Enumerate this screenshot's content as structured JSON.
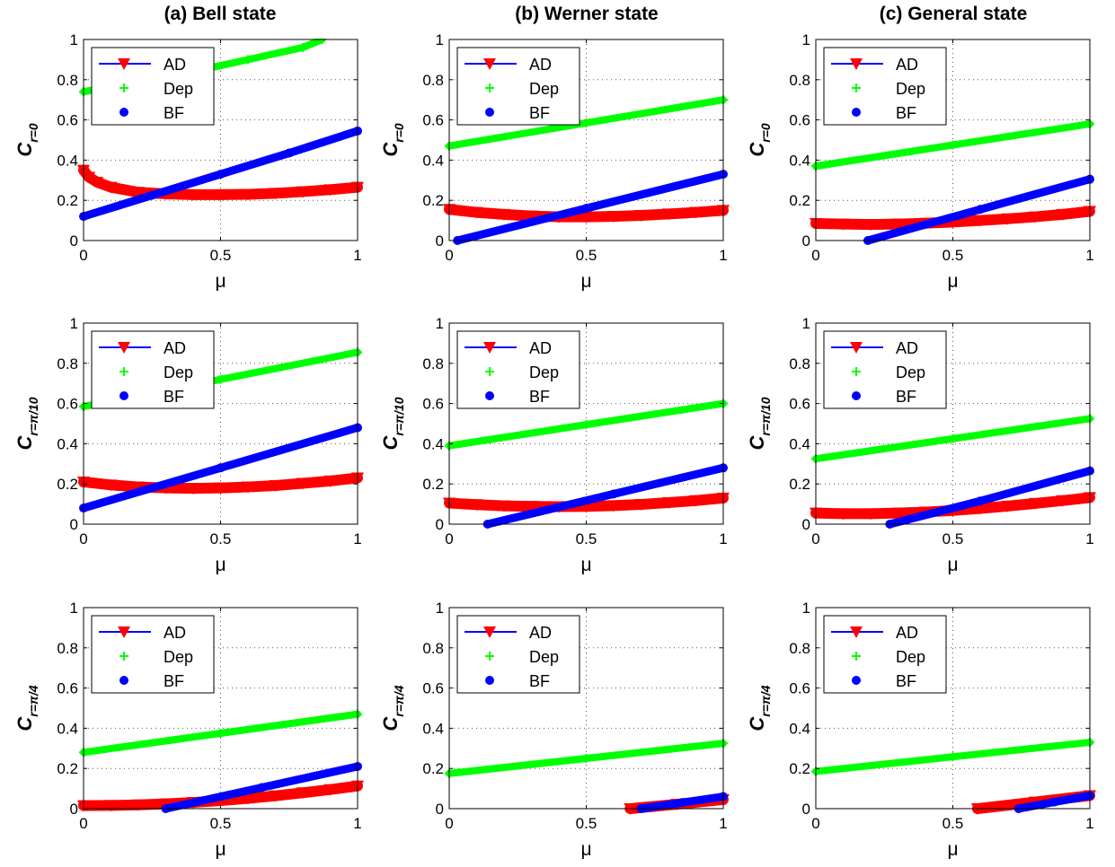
{
  "column_titles": [
    "(a) Bell state",
    "(b) Werner state",
    "(c) General state"
  ],
  "chart_data": [
    {
      "type": "line",
      "panel": "bell-r0",
      "xlabel": "μ",
      "ylabel_main": "C",
      "ylabel_sub": "r=0",
      "xlim": [
        0,
        1
      ],
      "ylim": [
        0,
        1
      ],
      "xticks": [
        "0",
        "0.5",
        "1"
      ],
      "yticks": [
        "0",
        "0.2",
        "0.4",
        "0.6",
        "0.8",
        "1"
      ],
      "grid": true,
      "legend_position": "top-left",
      "series": [
        {
          "name": "AD",
          "color": "#ff0000",
          "marker": "triangle-down",
          "x": [
            0,
            0.02,
            0.05,
            0.1,
            0.2,
            0.3,
            0.4,
            0.5,
            0.6,
            0.7,
            0.8,
            0.9,
            1.0
          ],
          "y": [
            0.35,
            0.315,
            0.29,
            0.265,
            0.24,
            0.232,
            0.228,
            0.228,
            0.23,
            0.235,
            0.243,
            0.253,
            0.265
          ]
        },
        {
          "name": "Dep",
          "color": "#00ff00",
          "marker": "plus",
          "x": [
            0,
            0.2,
            0.4,
            0.6,
            0.8,
            0.87
          ],
          "y": [
            0.74,
            0.79,
            0.84,
            0.9,
            0.96,
            1.0
          ]
        },
        {
          "name": "BF",
          "color": "#0000ff",
          "marker": "star",
          "x": [
            0,
            0.25,
            0.5,
            0.75,
            1.0
          ],
          "y": [
            0.12,
            0.225,
            0.33,
            0.435,
            0.545
          ]
        }
      ]
    },
    {
      "type": "line",
      "panel": "werner-r0",
      "xlabel": "μ",
      "ylabel_main": "C",
      "ylabel_sub": "r=0",
      "xlim": [
        0,
        1
      ],
      "ylim": [
        0,
        1
      ],
      "xticks": [
        "0",
        "0.5",
        "1"
      ],
      "yticks": [
        "0",
        "0.2",
        "0.4",
        "0.6",
        "0.8",
        "1"
      ],
      "grid": true,
      "legend_position": "top-left",
      "series": [
        {
          "name": "AD",
          "color": "#ff0000",
          "marker": "triangle-down",
          "x": [
            0,
            0.1,
            0.2,
            0.3,
            0.4,
            0.5,
            0.6,
            0.7,
            0.8,
            0.9,
            1.0
          ],
          "y": [
            0.155,
            0.14,
            0.13,
            0.122,
            0.118,
            0.118,
            0.12,
            0.125,
            0.132,
            0.14,
            0.15
          ]
        },
        {
          "name": "Dep",
          "color": "#00ff00",
          "marker": "plus",
          "x": [
            0,
            0.5,
            1.0
          ],
          "y": [
            0.47,
            0.585,
            0.7
          ]
        },
        {
          "name": "BF",
          "color": "#0000ff",
          "marker": "star",
          "x": [
            0.03,
            0.5,
            1.0
          ],
          "y": [
            0.0,
            0.16,
            0.33
          ]
        }
      ]
    },
    {
      "type": "line",
      "panel": "general-r0",
      "xlabel": "μ",
      "ylabel_main": "C",
      "ylabel_sub": "r=0",
      "xlim": [
        0,
        1
      ],
      "ylim": [
        0,
        1
      ],
      "xticks": [
        "0",
        "0.5",
        "1"
      ],
      "yticks": [
        "0",
        "0.2",
        "0.4",
        "0.6",
        "0.8",
        "1"
      ],
      "grid": true,
      "legend_position": "top-left",
      "series": [
        {
          "name": "AD",
          "color": "#ff0000",
          "marker": "triangle-down",
          "x": [
            0,
            0.1,
            0.2,
            0.3,
            0.4,
            0.5,
            0.6,
            0.7,
            0.8,
            0.9,
            1.0
          ],
          "y": [
            0.085,
            0.082,
            0.08,
            0.082,
            0.086,
            0.092,
            0.1,
            0.108,
            0.118,
            0.13,
            0.145
          ]
        },
        {
          "name": "Dep",
          "color": "#00ff00",
          "marker": "plus",
          "x": [
            0,
            0.5,
            1.0
          ],
          "y": [
            0.37,
            0.475,
            0.58
          ]
        },
        {
          "name": "BF",
          "color": "#0000ff",
          "marker": "star",
          "x": [
            0.19,
            0.6,
            1.0
          ],
          "y": [
            0.0,
            0.155,
            0.305
          ]
        }
      ]
    },
    {
      "type": "line",
      "panel": "bell-pi10",
      "xlabel": "μ",
      "ylabel_main": "C",
      "ylabel_sub": "r=π/10",
      "xlim": [
        0,
        1
      ],
      "ylim": [
        0,
        1
      ],
      "xticks": [
        "0",
        "0.5",
        "1"
      ],
      "yticks": [
        "0",
        "0.2",
        "0.4",
        "0.6",
        "0.8",
        "1"
      ],
      "grid": true,
      "legend_position": "top-left",
      "series": [
        {
          "name": "AD",
          "color": "#ff0000",
          "marker": "triangle-down",
          "x": [
            0,
            0.1,
            0.2,
            0.3,
            0.4,
            0.5,
            0.6,
            0.7,
            0.8,
            0.9,
            1.0
          ],
          "y": [
            0.21,
            0.195,
            0.185,
            0.18,
            0.178,
            0.18,
            0.185,
            0.192,
            0.203,
            0.215,
            0.23
          ]
        },
        {
          "name": "Dep",
          "color": "#00ff00",
          "marker": "plus",
          "x": [
            0,
            0.5,
            1.0
          ],
          "y": [
            0.585,
            0.72,
            0.855
          ]
        },
        {
          "name": "BF",
          "color": "#0000ff",
          "marker": "star",
          "x": [
            0,
            0.5,
            1.0
          ],
          "y": [
            0.08,
            0.28,
            0.48
          ]
        }
      ]
    },
    {
      "type": "line",
      "panel": "werner-pi10",
      "xlabel": "μ",
      "ylabel_main": "C",
      "ylabel_sub": "r=π/10",
      "xlim": [
        0,
        1
      ],
      "ylim": [
        0,
        1
      ],
      "xticks": [
        "0",
        "0.5",
        "1"
      ],
      "yticks": [
        "0",
        "0.2",
        "0.4",
        "0.6",
        "0.8",
        "1"
      ],
      "grid": true,
      "legend_position": "top-left",
      "series": [
        {
          "name": "AD",
          "color": "#ff0000",
          "marker": "triangle-down",
          "x": [
            0,
            0.1,
            0.2,
            0.3,
            0.4,
            0.5,
            0.6,
            0.7,
            0.8,
            0.9,
            1.0
          ],
          "y": [
            0.105,
            0.097,
            0.091,
            0.088,
            0.087,
            0.088,
            0.092,
            0.098,
            0.107,
            0.117,
            0.13
          ]
        },
        {
          "name": "Dep",
          "color": "#00ff00",
          "marker": "plus",
          "x": [
            0,
            0.5,
            1.0
          ],
          "y": [
            0.39,
            0.495,
            0.6
          ]
        },
        {
          "name": "BF",
          "color": "#0000ff",
          "marker": "star",
          "x": [
            0.14,
            0.6,
            1.0
          ],
          "y": [
            0.0,
            0.15,
            0.28
          ]
        }
      ]
    },
    {
      "type": "line",
      "panel": "general-pi10",
      "xlabel": "μ",
      "ylabel_main": "C",
      "ylabel_sub": "r=π/10",
      "xlim": [
        0,
        1
      ],
      "ylim": [
        0,
        1
      ],
      "xticks": [
        "0",
        "0.5",
        "1"
      ],
      "yticks": [
        "0",
        "0.2",
        "0.4",
        "0.6",
        "0.8",
        "1"
      ],
      "grid": true,
      "legend_position": "top-left",
      "series": [
        {
          "name": "AD",
          "color": "#ff0000",
          "marker": "triangle-down",
          "x": [
            0,
            0.1,
            0.2,
            0.3,
            0.4,
            0.5,
            0.6,
            0.7,
            0.8,
            0.9,
            1.0
          ],
          "y": [
            0.055,
            0.052,
            0.052,
            0.055,
            0.06,
            0.068,
            0.078,
            0.09,
            0.103,
            0.117,
            0.132
          ]
        },
        {
          "name": "Dep",
          "color": "#00ff00",
          "marker": "plus",
          "x": [
            0,
            0.5,
            1.0
          ],
          "y": [
            0.325,
            0.425,
            0.525
          ]
        },
        {
          "name": "BF",
          "color": "#0000ff",
          "marker": "star",
          "x": [
            0.27,
            0.6,
            1.0
          ],
          "y": [
            0.0,
            0.115,
            0.265
          ]
        }
      ]
    },
    {
      "type": "line",
      "panel": "bell-pi4",
      "xlabel": "μ",
      "ylabel_main": "C",
      "ylabel_sub": "r=π/4",
      "xlim": [
        0,
        1
      ],
      "ylim": [
        0,
        1
      ],
      "xticks": [
        "0",
        "0.5",
        "1"
      ],
      "yticks": [
        "0",
        "0.2",
        "0.4",
        "0.6",
        "0.8",
        "1"
      ],
      "grid": true,
      "legend_position": "top-left",
      "series": [
        {
          "name": "AD",
          "color": "#ff0000",
          "marker": "triangle-down",
          "x": [
            0,
            0.1,
            0.2,
            0.3,
            0.4,
            0.5,
            0.6,
            0.7,
            0.8,
            0.9,
            1.0
          ],
          "y": [
            0.015,
            0.016,
            0.019,
            0.024,
            0.031,
            0.04,
            0.051,
            0.064,
            0.079,
            0.095,
            0.113
          ]
        },
        {
          "name": "Dep",
          "color": "#00ff00",
          "marker": "plus",
          "x": [
            0,
            0.5,
            1.0
          ],
          "y": [
            0.28,
            0.375,
            0.47
          ]
        },
        {
          "name": "BF",
          "color": "#0000ff",
          "marker": "star",
          "x": [
            0.3,
            0.65,
            1.0
          ],
          "y": [
            0.0,
            0.105,
            0.21
          ]
        }
      ]
    },
    {
      "type": "line",
      "panel": "werner-pi4",
      "xlabel": "μ",
      "ylabel_main": "C",
      "ylabel_sub": "r=π/4",
      "xlim": [
        0,
        1
      ],
      "ylim": [
        0,
        1
      ],
      "xticks": [
        "0",
        "0.5",
        "1"
      ],
      "yticks": [
        "0",
        "0.2",
        "0.4",
        "0.6",
        "0.8",
        "1"
      ],
      "grid": true,
      "legend_position": "top-left",
      "series": [
        {
          "name": "AD",
          "color": "#ff0000",
          "marker": "triangle-down",
          "x": [
            0.66,
            0.83,
            1.0
          ],
          "y": [
            0.0,
            0.022,
            0.045
          ]
        },
        {
          "name": "Dep",
          "color": "#00ff00",
          "marker": "plus",
          "x": [
            0,
            0.5,
            1.0
          ],
          "y": [
            0.175,
            0.25,
            0.325
          ]
        },
        {
          "name": "BF",
          "color": "#0000ff",
          "marker": "star",
          "x": [
            0.7,
            0.85,
            1.0
          ],
          "y": [
            0.0,
            0.03,
            0.06
          ]
        }
      ]
    },
    {
      "type": "line",
      "panel": "general-pi4",
      "xlabel": "μ",
      "ylabel_main": "C",
      "ylabel_sub": "r=π/4",
      "xlim": [
        0,
        1
      ],
      "ylim": [
        0,
        1
      ],
      "xticks": [
        "0",
        "0.5",
        "1"
      ],
      "yticks": [
        "0",
        "0.2",
        "0.4",
        "0.6",
        "0.8",
        "1"
      ],
      "grid": true,
      "legend_position": "top-left",
      "series": [
        {
          "name": "AD",
          "color": "#ff0000",
          "marker": "triangle-down",
          "x": [
            0.59,
            0.8,
            1.0
          ],
          "y": [
            0.0,
            0.033,
            0.065
          ]
        },
        {
          "name": "Dep",
          "color": "#00ff00",
          "marker": "plus",
          "x": [
            0,
            0.5,
            1.0
          ],
          "y": [
            0.185,
            0.258,
            0.33
          ]
        },
        {
          "name": "BF",
          "color": "#0000ff",
          "marker": "star",
          "x": [
            0.74,
            0.87,
            1.0
          ],
          "y": [
            0.0,
            0.033,
            0.065
          ]
        }
      ]
    }
  ]
}
